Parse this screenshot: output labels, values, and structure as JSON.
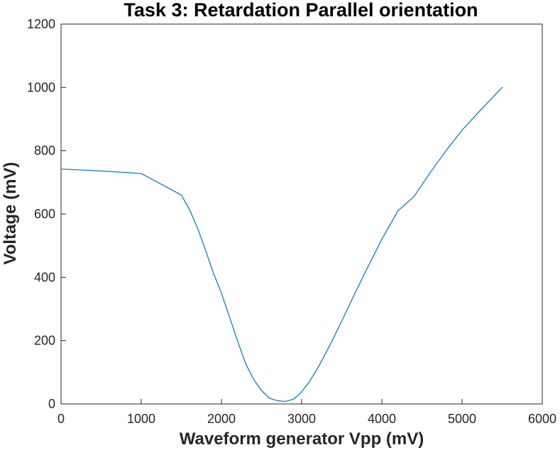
{
  "chart_data": {
    "type": "line",
    "title": "Task 3: Retardation Parallel orientation",
    "xlabel": "Waveform generator Vpp (mV)",
    "ylabel": "Voltage (mV)",
    "xlim": [
      0,
      6000
    ],
    "ylim": [
      0,
      1200
    ],
    "xticks": [
      0,
      1000,
      2000,
      3000,
      4000,
      5000,
      6000
    ],
    "yticks": [
      0,
      200,
      400,
      600,
      800,
      1000,
      1200
    ],
    "xtick_labels": [
      "0",
      "1000",
      "2000",
      "3000",
      "4000",
      "5000",
      "6000"
    ],
    "ytick_labels": [
      "0",
      "200",
      "400",
      "600",
      "800",
      "1000",
      "1200"
    ],
    "grid": false,
    "series": [
      {
        "color": "#0072bd",
        "x": [
          0,
          500,
          1000,
          1500,
          1600,
          1700,
          1800,
          1900,
          2000,
          2100,
          2200,
          2300,
          2400,
          2500,
          2600,
          2700,
          2800,
          2900,
          3000,
          3100,
          3200,
          3300,
          3400,
          3500,
          3600,
          3700,
          3800,
          3900,
          4000,
          4200,
          4400,
          4600,
          4800,
          5000,
          5200,
          5500
        ],
        "y": [
          742,
          736,
          728,
          660,
          615,
          557,
          487,
          413,
          350,
          275,
          200,
          128,
          78,
          42,
          18,
          10,
          8,
          15,
          38,
          72,
          113,
          160,
          210,
          262,
          315,
          368,
          420,
          470,
          520,
          610,
          655,
          730,
          800,
          865,
          920,
          1000
        ]
      }
    ]
  }
}
